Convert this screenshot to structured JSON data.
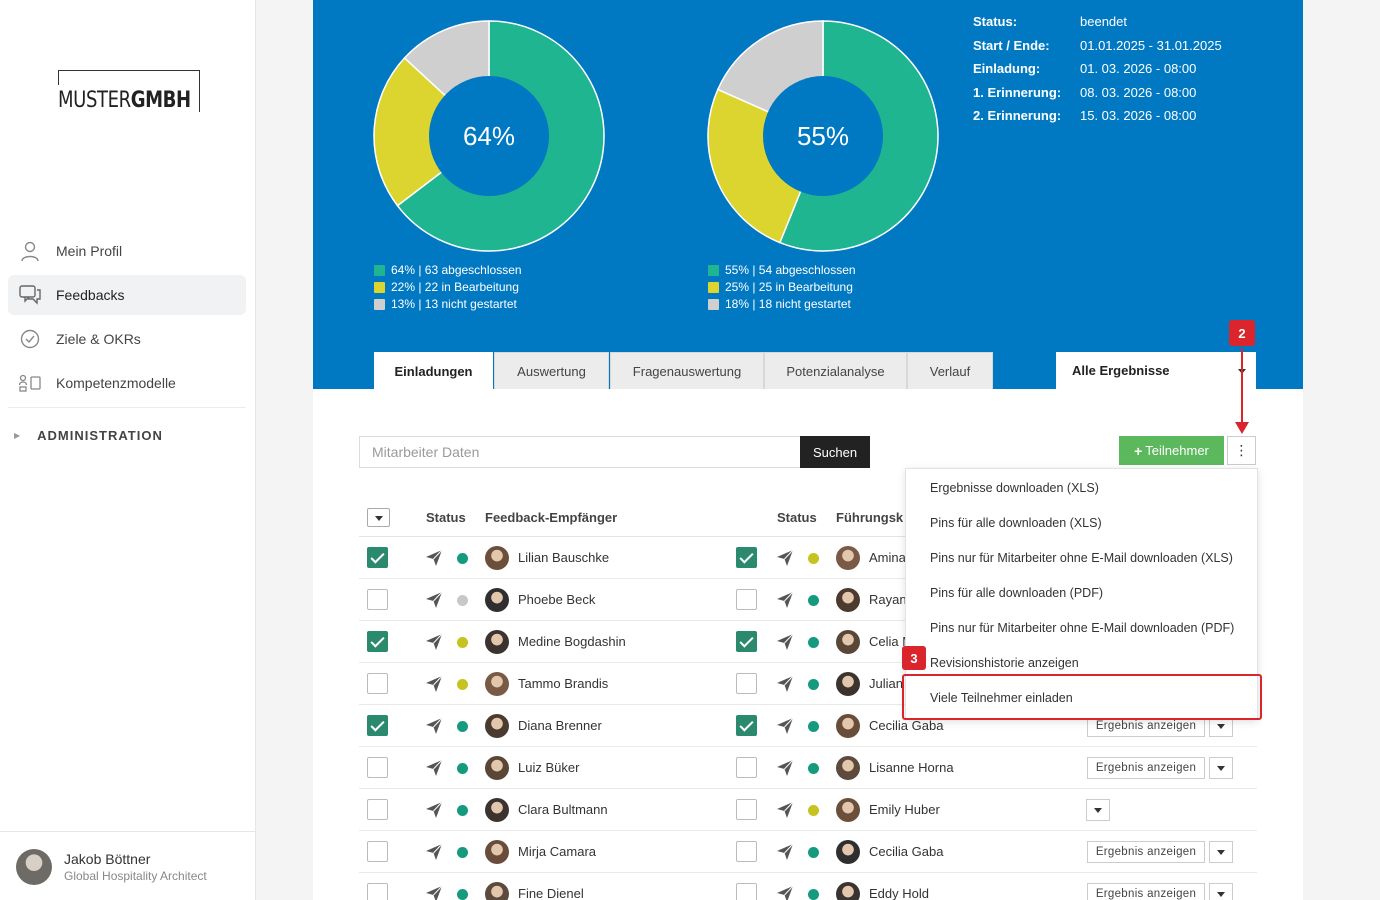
{
  "logo": {
    "part1": "MUSTER",
    "part2": "GMBH"
  },
  "sidebar": {
    "items": [
      {
        "label": "Mein Profil",
        "icon": "user-icon"
      },
      {
        "label": "Feedbacks",
        "icon": "chat-icon"
      },
      {
        "label": "Ziele & OKRs",
        "icon": "check-circle-icon"
      },
      {
        "label": "Kompetenzmodelle",
        "icon": "model-icon"
      }
    ],
    "admin_label": "ADMINISTRATION"
  },
  "user": {
    "name": "Jakob Böttner",
    "role": "Global Hospitality Architect"
  },
  "charts": [
    {
      "center": "64%",
      "legend": [
        "64% | 63 abgeschlossen",
        "22% | 22 in Bearbeitung",
        "13% | 13 nicht gestartet"
      ]
    },
    {
      "center": "55%",
      "legend": [
        "55% | 54 abgeschlossen",
        "25% | 25 in Bearbeitung",
        "18% | 18 nicht gestartet"
      ]
    }
  ],
  "chart_data": [
    {
      "type": "pie",
      "categories": [
        "abgeschlossen",
        "in Bearbeitung",
        "nicht gestartet"
      ],
      "values": [
        64,
        22,
        13
      ],
      "colors": [
        "#1fb591",
        "#dcd52f",
        "#cfcfcf"
      ]
    },
    {
      "type": "pie",
      "categories": [
        "abgeschlossen",
        "in Bearbeitung",
        "nicht gestartet"
      ],
      "values": [
        55,
        25,
        18
      ],
      "colors": [
        "#1fb591",
        "#dcd52f",
        "#cfcfcf"
      ]
    }
  ],
  "info": {
    "status_label": "Status:",
    "status": "beendet",
    "period_label": "Start / Ende:",
    "period": "01.01.2025 - 31.01.2025",
    "invite_label": "Einladung:",
    "invite": "01. 03. 2026 - 08:00",
    "rem1_label": "1. Erinnerung:",
    "rem1": "08. 03. 2026 - 08:00",
    "rem2_label": "2. Erinnerung:",
    "rem2": "15. 03. 2026 - 08:00"
  },
  "tabs": [
    "Einladungen",
    "Auswertung",
    "Fragenauswertung",
    "Potenzialanalyse",
    "Verlauf"
  ],
  "filter": "Alle Ergebnisse",
  "search": {
    "placeholder": "Mitarbeiter Daten",
    "button": "Suchen"
  },
  "add_button": "Teilnehmer",
  "more_button": "⋮",
  "table": {
    "headers": {
      "status": "Status",
      "recipient": "Feedback-Empfänger",
      "status2": "Status",
      "manager": "Führungsk"
    },
    "rows": [
      {
        "checked": true,
        "dot": "#159a7e",
        "name": "Lilian Bauschke",
        "checked2": true,
        "dot2": "#c6c31e",
        "manager": "Amina",
        "button": ""
      },
      {
        "checked": false,
        "dot": "#c8c8c8",
        "name": "Phoebe Beck",
        "checked2": false,
        "dot2": "#159a7e",
        "manager": "Rayan",
        "button": ""
      },
      {
        "checked": true,
        "dot": "#c6c31e",
        "name": "Medine Bogdashin",
        "checked2": true,
        "dot2": "#159a7e",
        "manager": "Celia M",
        "button": ""
      },
      {
        "checked": false,
        "dot": "#c6c31e",
        "name": "Tammo Brandis",
        "checked2": false,
        "dot2": "#159a7e",
        "manager": "Julian",
        "button": ""
      },
      {
        "checked": true,
        "dot": "#159a7e",
        "name": "Diana Brenner",
        "checked2": true,
        "dot2": "#159a7e",
        "manager": "Cecilia Gaba",
        "button": "Ergebnis anzeigen"
      },
      {
        "checked": false,
        "dot": "#159a7e",
        "name": "Luiz Büker",
        "checked2": false,
        "dot2": "#159a7e",
        "manager": "Lisanne Horna",
        "button": "Ergebnis anzeigen"
      },
      {
        "checked": false,
        "dot": "#159a7e",
        "name": "Clara Bultmann",
        "checked2": false,
        "dot2": "#c6c31e",
        "manager": "Emily Huber",
        "button": ""
      },
      {
        "checked": false,
        "dot": "#159a7e",
        "name": "Mirja Camara",
        "checked2": false,
        "dot2": "#159a7e",
        "manager": "Cecilia Gaba",
        "button": "Ergebnis anzeigen"
      },
      {
        "checked": false,
        "dot": "#159a7e",
        "name": "Fine Dienel",
        "checked2": false,
        "dot2": "#159a7e",
        "manager": "Eddy Hold",
        "button": "Ergebnis anzeigen"
      }
    ]
  },
  "menu": {
    "items": [
      "Ergebnisse downloaden (XLS)",
      "Pins für alle downloaden (XLS)",
      "Pins nur für Mitarbeiter ohne E-Mail downloaden (XLS)",
      "Pins für alle downloaden (PDF)",
      "Pins nur für Mitarbeiter ohne E-Mail downloaden (PDF)",
      "Revisionshistorie anzeigen",
      "Viele Teilnehmer einladen"
    ]
  },
  "annotations": {
    "badge_2": "2",
    "badge_3": "3"
  }
}
